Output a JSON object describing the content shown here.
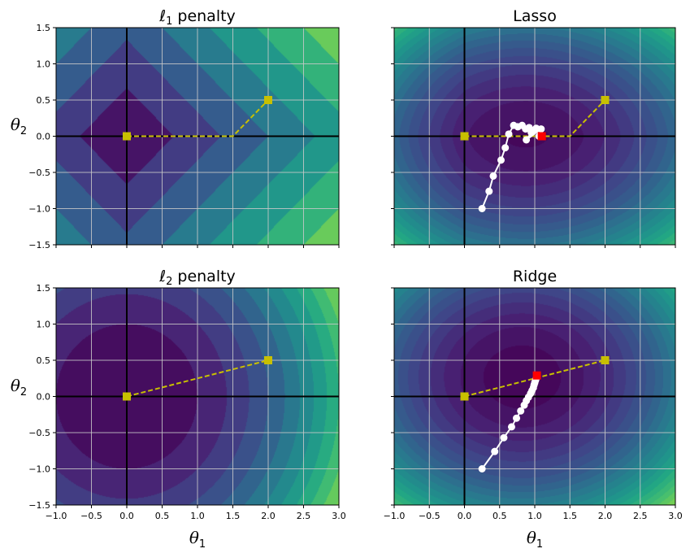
{
  "figure": {
    "xlabel_main": "θ",
    "xlabel_sub": "1",
    "ylabel_main": "θ",
    "ylabel_sub": "2"
  },
  "chart_data": [
    {
      "type": "contour",
      "title_main": "ℓ",
      "title_sub": "1",
      "title_rest": " penalty",
      "contour_fn": "l1",
      "xlim": [
        -1.0,
        3.0
      ],
      "ylim": [
        -1.5,
        1.5
      ],
      "xticks": [
        "−1.0",
        "−0.5",
        "0.0",
        "0.5",
        "1.0",
        "1.5",
        "2.0",
        "2.5",
        "3.0"
      ],
      "yticks": [
        "1.5",
        "1.0",
        "0.5",
        "0.0",
        "−0.5",
        "−1.0",
        "−1.5"
      ],
      "xtick_values": [
        -1.0,
        -0.5,
        0.0,
        0.5,
        1.0,
        1.5,
        2.0,
        2.5,
        3.0
      ],
      "ytick_values": [
        1.5,
        1.0,
        0.5,
        0.0,
        -0.5,
        -1.0,
        -1.5
      ],
      "show_xticklabels": false,
      "show_yticklabels": true,
      "grid": true,
      "path_color": "#c8c000",
      "path": [
        [
          0.0,
          0.0
        ],
        [
          1.5,
          0.0
        ],
        [
          2.0,
          0.5
        ]
      ],
      "markers": [
        [
          0.0,
          0.0
        ],
        [
          2.0,
          0.5
        ]
      ],
      "gd_path": [],
      "optimum": null
    },
    {
      "type": "contour",
      "title_main": "Lasso",
      "title_sub": "",
      "title_rest": "",
      "contour_fn": "lasso",
      "xlim": [
        -1.0,
        3.0
      ],
      "ylim": [
        -1.5,
        1.5
      ],
      "xticks": [
        "−1.0",
        "−0.5",
        "0.0",
        "0.5",
        "1.0",
        "1.5",
        "2.0",
        "2.5",
        "3.0"
      ],
      "yticks": [
        "1.5",
        "1.0",
        "0.5",
        "0.0",
        "−0.5",
        "−1.0",
        "−1.5"
      ],
      "xtick_values": [
        -1.0,
        -0.5,
        0.0,
        0.5,
        1.0,
        1.5,
        2.0,
        2.5,
        3.0
      ],
      "ytick_values": [
        1.5,
        1.0,
        0.5,
        0.0,
        -0.5,
        -1.0,
        -1.5
      ],
      "show_xticklabels": false,
      "show_yticklabels": false,
      "grid": true,
      "path_color": "#c8c000",
      "path": [
        [
          0.0,
          0.0
        ],
        [
          1.5,
          0.0
        ],
        [
          2.0,
          0.5
        ]
      ],
      "markers": [
        [
          0.0,
          0.0
        ],
        [
          2.0,
          0.5
        ]
      ],
      "gd_path": [
        [
          0.25,
          -1.0
        ],
        [
          0.35,
          -0.76
        ],
        [
          0.41,
          -0.55
        ],
        [
          0.52,
          -0.33
        ],
        [
          0.58,
          -0.16
        ],
        [
          0.63,
          0.03
        ],
        [
          0.7,
          0.15
        ],
        [
          0.76,
          0.13
        ],
        [
          0.82,
          0.15
        ],
        [
          0.87,
          0.1
        ],
        [
          0.92,
          0.12
        ],
        [
          0.97,
          0.07
        ],
        [
          1.02,
          0.11
        ],
        [
          1.06,
          0.0
        ],
        [
          1.09,
          0.1
        ],
        [
          0.88,
          -0.05
        ],
        [
          0.95,
          0.05
        ]
      ],
      "optimum": [
        1.1,
        0.0
      ]
    },
    {
      "type": "contour",
      "title_main": "ℓ",
      "title_sub": "2",
      "title_rest": " penalty",
      "contour_fn": "l2",
      "xlim": [
        -1.0,
        3.0
      ],
      "ylim": [
        -1.5,
        1.5
      ],
      "xticks": [
        "−1.0",
        "−0.5",
        "0.0",
        "0.5",
        "1.0",
        "1.5",
        "2.0",
        "2.5",
        "3.0"
      ],
      "yticks": [
        "1.5",
        "1.0",
        "0.5",
        "0.0",
        "−0.5",
        "−1.0",
        "−1.5"
      ],
      "xtick_values": [
        -1.0,
        -0.5,
        0.0,
        0.5,
        1.0,
        1.5,
        2.0,
        2.5,
        3.0
      ],
      "ytick_values": [
        1.5,
        1.0,
        0.5,
        0.0,
        -0.5,
        -1.0,
        -1.5
      ],
      "show_xticklabels": true,
      "show_yticklabels": true,
      "grid": true,
      "path_color": "#c8c000",
      "path": [
        [
          0.0,
          0.0
        ],
        [
          2.0,
          0.5
        ]
      ],
      "markers": [
        [
          0.0,
          0.0
        ],
        [
          2.0,
          0.5
        ]
      ],
      "gd_path": [],
      "optimum": null
    },
    {
      "type": "contour",
      "title_main": "Ridge",
      "title_sub": "",
      "title_rest": "",
      "contour_fn": "ridge",
      "xlim": [
        -1.0,
        3.0
      ],
      "ylim": [
        -1.5,
        1.5
      ],
      "xticks": [
        "−1.0",
        "−0.5",
        "0.0",
        "0.5",
        "1.0",
        "1.5",
        "2.0",
        "2.5",
        "3.0"
      ],
      "yticks": [
        "1.5",
        "1.0",
        "0.5",
        "0.0",
        "−0.5",
        "−1.0",
        "−1.5"
      ],
      "xtick_values": [
        -1.0,
        -0.5,
        0.0,
        0.5,
        1.0,
        1.5,
        2.0,
        2.5,
        3.0
      ],
      "ytick_values": [
        1.5,
        1.0,
        0.5,
        0.0,
        -0.5,
        -1.0,
        -1.5
      ],
      "show_xticklabels": true,
      "show_yticklabels": false,
      "grid": true,
      "path_color": "#c8c000",
      "path": [
        [
          0.0,
          0.0
        ],
        [
          2.0,
          0.5
        ]
      ],
      "markers": [
        [
          0.0,
          0.0
        ],
        [
          2.0,
          0.5
        ]
      ],
      "gd_path": [
        [
          0.25,
          -1.0
        ],
        [
          0.43,
          -0.76
        ],
        [
          0.56,
          -0.57
        ],
        [
          0.67,
          -0.42
        ],
        [
          0.74,
          -0.3
        ],
        [
          0.8,
          -0.2
        ],
        [
          0.85,
          -0.12
        ],
        [
          0.88,
          -0.06
        ],
        [
          0.91,
          -0.01
        ],
        [
          0.94,
          0.04
        ],
        [
          0.96,
          0.08
        ],
        [
          0.98,
          0.12
        ],
        [
          0.99,
          0.16
        ],
        [
          1.0,
          0.19
        ],
        [
          1.01,
          0.22
        ],
        [
          1.02,
          0.25
        ]
      ],
      "optimum": [
        1.03,
        0.29
      ]
    }
  ]
}
